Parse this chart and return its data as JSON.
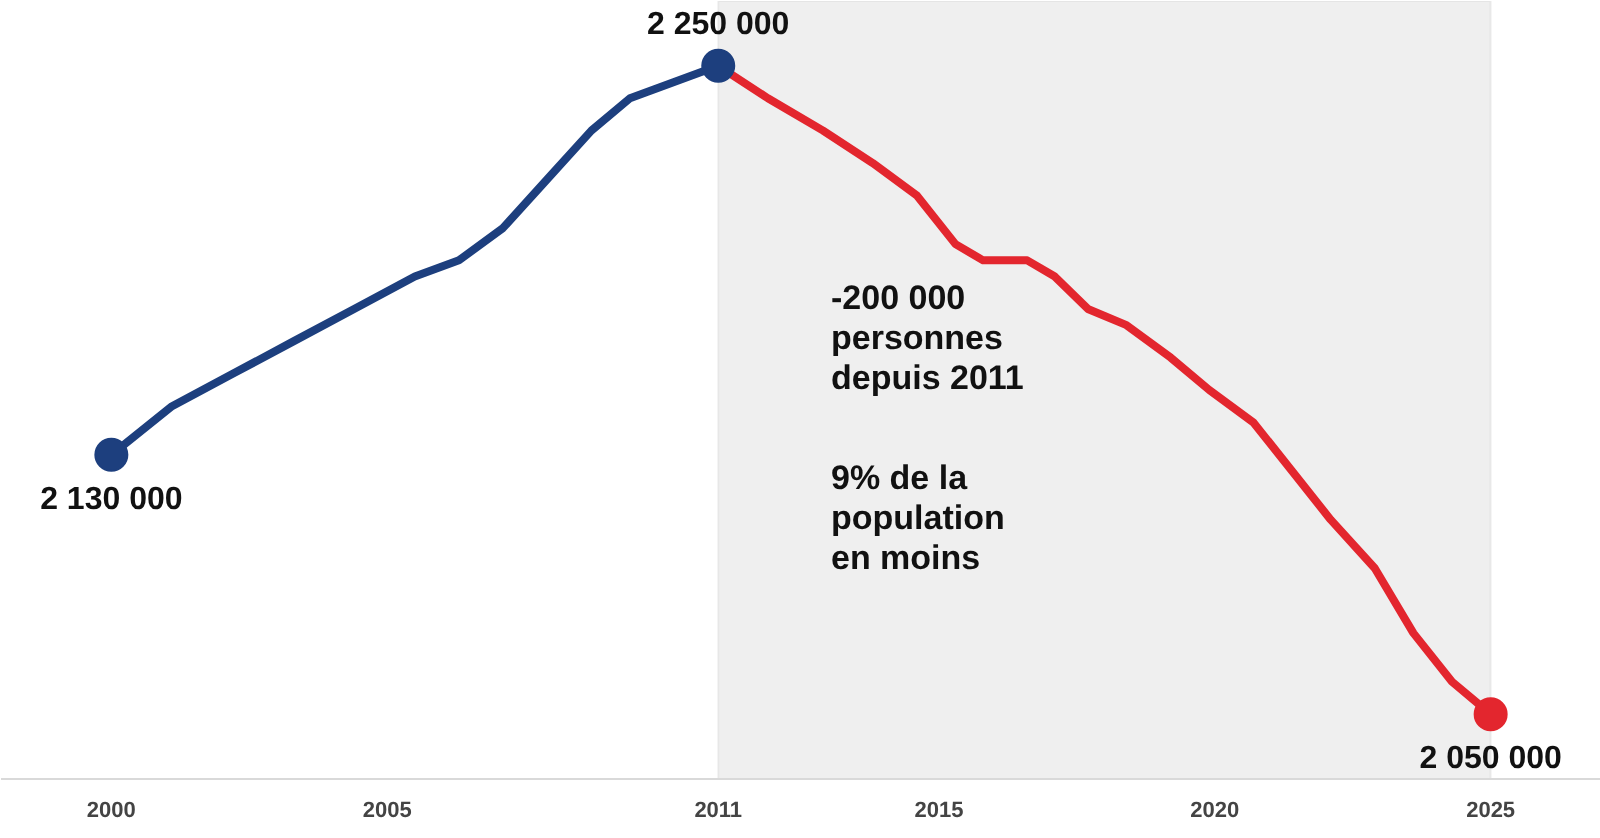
{
  "chart_data": {
    "type": "line",
    "x": [
      2000,
      2001.1,
      2002.2,
      2003.3,
      2004.4,
      2005.5,
      2006.3,
      2007.1,
      2007.9,
      2008.7,
      2009.4,
      2010.2,
      2011
    ],
    "series": [
      {
        "color": "#1d3f7e",
        "values": [
          2130000,
          2145000,
          2155000,
          2165000,
          2175000,
          2185000,
          2190000,
          2200000,
          2215000,
          2230000,
          2240000,
          2245000,
          2250000
        ]
      },
      {
        "color": "#e3262e",
        "x": [
          2011,
          2011.9,
          2012.9,
          2013.8,
          2014.6,
          2015.3,
          2015.8,
          2016.6,
          2017.1,
          2017.7,
          2018.4,
          2019.2,
          2019.9,
          2020.7,
          2021.4,
          2022.1,
          2022.9,
          2023.6,
          2024.3,
          2025
        ],
        "values": [
          2250000,
          2240000,
          2230000,
          2220000,
          2210000,
          2195000,
          2190000,
          2190000,
          2185000,
          2175000,
          2170000,
          2160000,
          2150000,
          2140000,
          2125000,
          2110000,
          2095000,
          2075000,
          2060000,
          2050000
        ]
      },
      {
        "type": "scatter",
        "color": "#1d3f7e",
        "x": [
          2000,
          2011
        ],
        "values": [
          2130000,
          2250000
        ],
        "value_labels": [
          "2 130 000",
          "2 250 000"
        ]
      },
      {
        "type": "scatter",
        "color": "#e3262e",
        "x": [
          2025
        ],
        "values": [
          2050000
        ],
        "value_labels": [
          "2 050 000"
        ]
      }
    ],
    "xlim": [
      1998,
      2027
    ],
    "xticks": [
      2000,
      2005,
      2011,
      2015,
      2020,
      2025
    ],
    "tick_labels": "x",
    "grid": false,
    "bands": [
      {
        "axis": "x",
        "from": 2011,
        "to": 2025,
        "color": "#efefef"
      }
    ],
    "annotations": [
      "-200 000\npersonnes\ndepuis 2011",
      "9% de la\npopulation\nen moins"
    ]
  }
}
